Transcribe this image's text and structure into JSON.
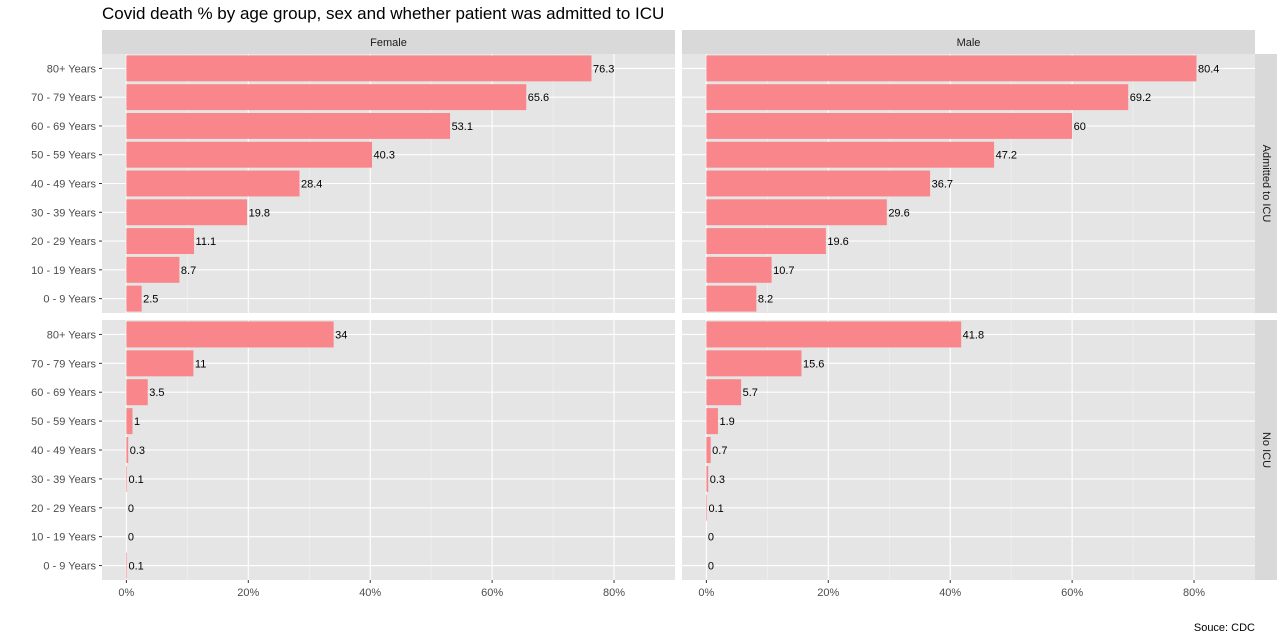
{
  "chart_data": {
    "type": "bar",
    "orientation": "horizontal",
    "title": "Covid death % by age group, sex and whether patient was admitted to ICU",
    "caption": "Souce: CDC",
    "categories": [
      "0 - 9 Years",
      "10 - 19 Years",
      "20 - 29 Years",
      "30 - 39 Years",
      "40 - 49 Years",
      "50 - 59 Years",
      "60 - 69 Years",
      "70 - 79 Years",
      "80+ Years"
    ],
    "xlim": [
      -4,
      90
    ],
    "x_ticks": [
      0,
      20,
      40,
      60,
      80
    ],
    "x_tick_labels": [
      "0%",
      "20%",
      "40%",
      "60%",
      "80%"
    ],
    "bar_color": "#f8868a",
    "panel_bg": "#e5e5e5",
    "strip_bg": "#d9d9d9",
    "grid": true,
    "col_facets": [
      "Female",
      "Male"
    ],
    "row_facets": [
      "Admitted to ICU",
      "No ICU"
    ],
    "panels": [
      {
        "col": "Female",
        "row": "Admitted to ICU",
        "values": [
          2.5,
          8.7,
          11.1,
          19.8,
          28.4,
          40.3,
          53.1,
          65.6,
          76.3
        ],
        "labels": [
          "2.5",
          "8.7",
          "11.1",
          "19.8",
          "28.4",
          "40.3",
          "53.1",
          "65.6",
          "76.3"
        ]
      },
      {
        "col": "Male",
        "row": "Admitted to ICU",
        "values": [
          8.2,
          10.7,
          19.6,
          29.6,
          36.7,
          47.2,
          60,
          69.2,
          80.4
        ],
        "labels": [
          "8.2",
          "10.7",
          "19.6",
          "29.6",
          "36.7",
          "47.2",
          "60",
          "69.2",
          "80.4"
        ]
      },
      {
        "col": "Female",
        "row": "No ICU",
        "values": [
          0.1,
          0,
          0,
          0.1,
          0.3,
          1,
          3.5,
          11,
          34
        ],
        "labels": [
          "0.1",
          "0",
          "0",
          "0.1",
          "0.3",
          "1",
          "3.5",
          "11",
          "34"
        ]
      },
      {
        "col": "Male",
        "row": "No ICU",
        "values": [
          0,
          0,
          0.1,
          0.3,
          0.7,
          1.9,
          5.7,
          15.6,
          41.8
        ],
        "labels": [
          "0",
          "0",
          "0.1",
          "0.3",
          "0.7",
          "1.9",
          "5.7",
          "15.6",
          "41.8"
        ]
      }
    ]
  }
}
